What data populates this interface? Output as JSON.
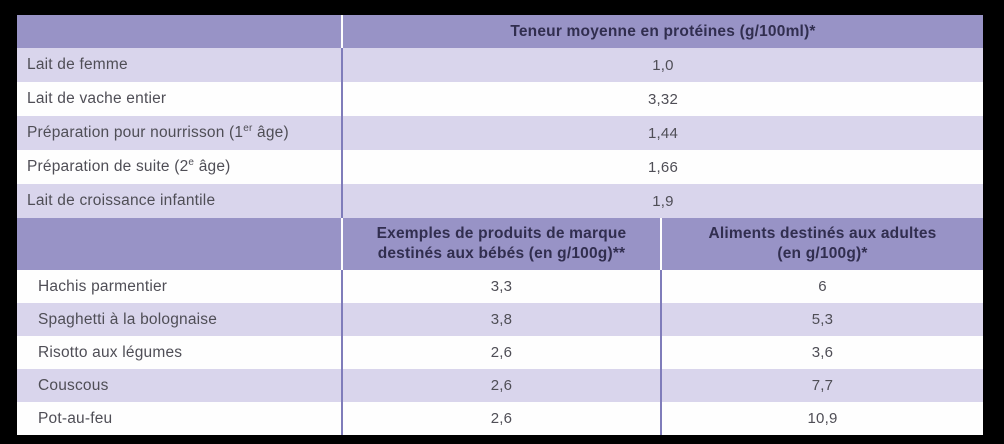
{
  "colors": {
    "frame_background": "#000000",
    "header_background": "#9893c6",
    "row_alt_background": "#d9d5ec",
    "row_background": "#fefefe",
    "column_divider": "#7f7cba",
    "header_text": "#312e4f",
    "body_text": "#4f4e56"
  },
  "table": {
    "header_milk": "Teneur moyenne en protéines (g/100ml)*",
    "milk_rows": [
      {
        "label": "Lait de femme",
        "sup": "",
        "label_end": "",
        "value": "1,0"
      },
      {
        "label": "Lait de vache entier",
        "sup": "",
        "label_end": "",
        "value": "3,32"
      },
      {
        "label": "Préparation pour nourrisson (1",
        "sup": "er",
        "label_end": " âge)",
        "value": "1,44"
      },
      {
        "label": "Préparation de suite (2",
        "sup": "e",
        "label_end": " âge)",
        "value": "1,66"
      },
      {
        "label": "Lait de croissance infantile",
        "sup": "",
        "label_end": "",
        "value": "1,9"
      }
    ],
    "header_baby": "Exemples de produits de marque destinés aux bébés (en g/100g)**",
    "header_adult": "Aliments destinés aux adultes (en g/100g)*",
    "food_rows": [
      {
        "label": "Hachis parmentier",
        "baby": "3,3",
        "adult": "6"
      },
      {
        "label": "Spaghetti à la bolognaise",
        "baby": "3,8",
        "adult": "5,3"
      },
      {
        "label": "Risotto aux légumes",
        "baby": "2,6",
        "adult": "3,6"
      },
      {
        "label": "Couscous",
        "baby": "2,6",
        "adult": "7,7"
      },
      {
        "label": "Pot-au-feu",
        "baby": "2,6",
        "adult": "10,9"
      }
    ]
  }
}
